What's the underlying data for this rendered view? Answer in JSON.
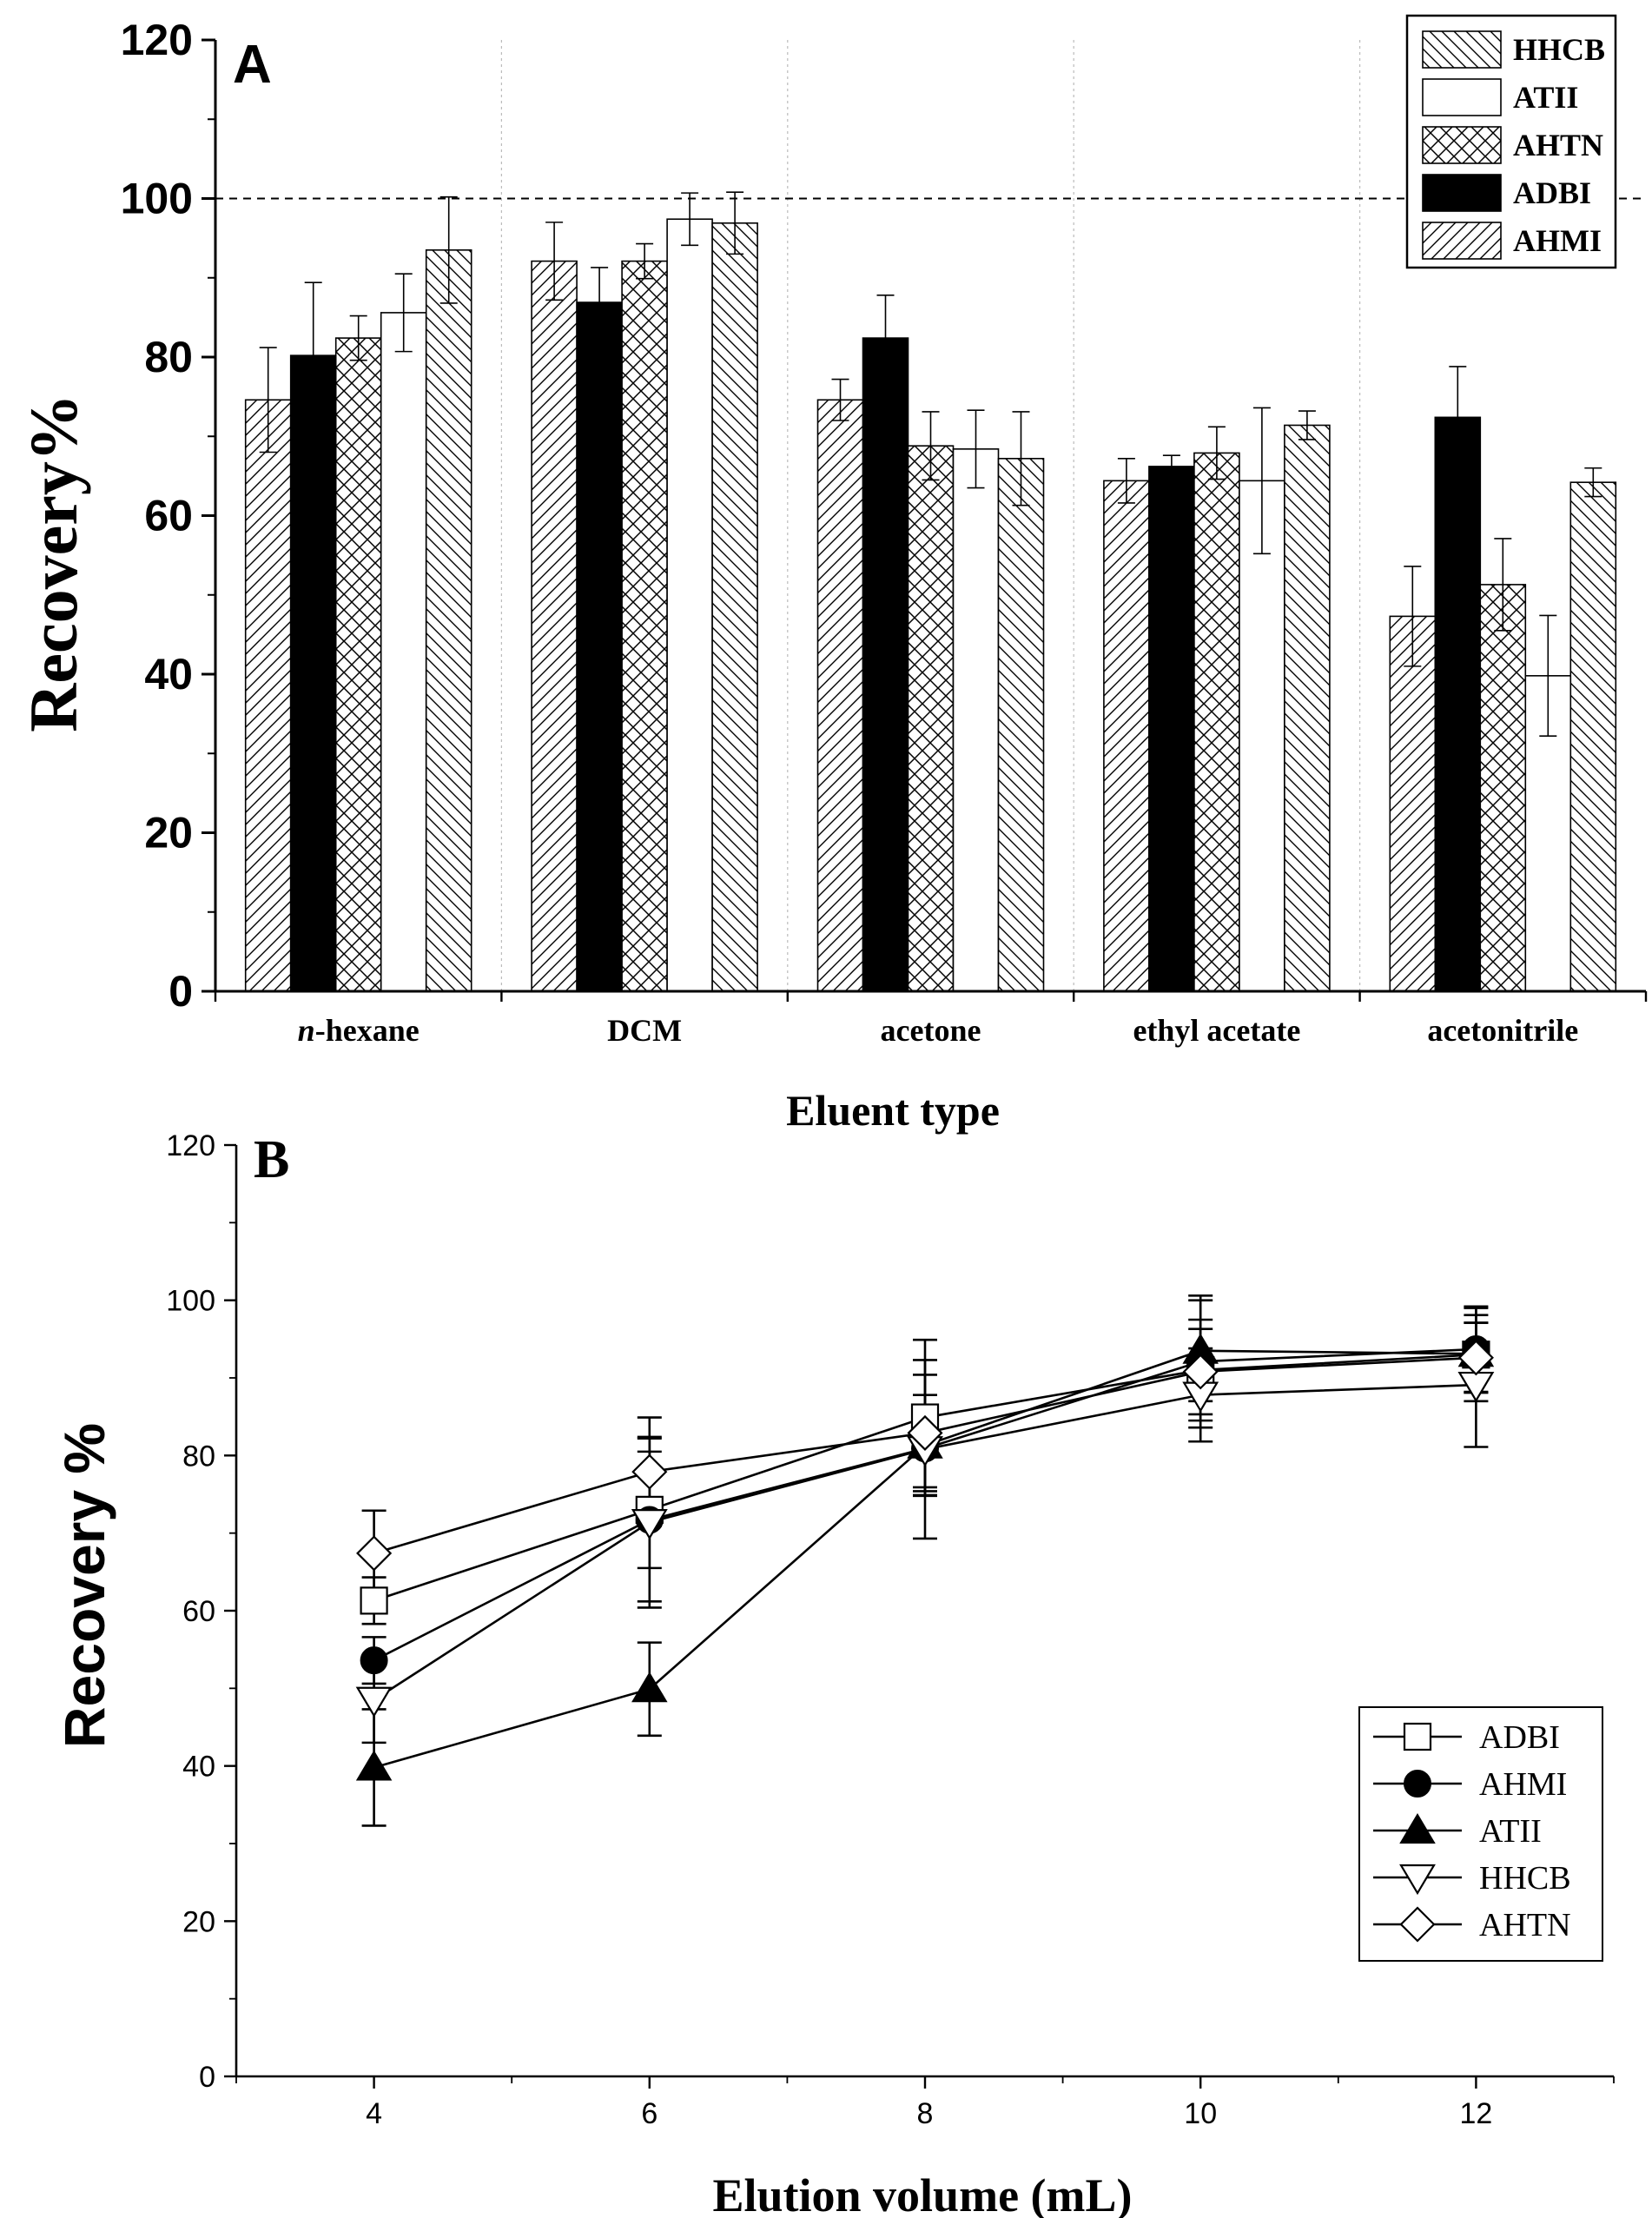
{
  "chart_data": [
    {
      "panel": "A",
      "type": "bar",
      "panel_label": "A",
      "xlabel": "Eluent type",
      "ylabel": "Recovery%",
      "ylim": [
        0,
        120
      ],
      "yticks": [
        "0",
        "20",
        "40",
        "60",
        "80",
        "100",
        "120"
      ],
      "reference_line": 100,
      "categories": [
        "n-hexane",
        "DCM",
        "acetone",
        "ethyl acetate",
        "acetonitrile"
      ],
      "category_labels": [
        {
          "prefix": "n",
          "rest": "-hexane"
        },
        {
          "prefix": "",
          "rest": "DCM"
        },
        {
          "prefix": "",
          "rest": "acetone"
        },
        {
          "prefix": "",
          "rest": "ethyl acetate"
        },
        {
          "prefix": "",
          "rest": "acetonitrile"
        }
      ],
      "legend": [
        "HHCB",
        "ATII",
        "AHTN",
        "ADBI",
        "AHMI"
      ],
      "legend_patterns": [
        "diag-down",
        "white",
        "cross",
        "black",
        "diag-up"
      ],
      "bar_order": [
        "AHMI",
        "ADBI",
        "AHTN",
        "ATII",
        "HHCB"
      ],
      "series": [
        {
          "name": "AHMI",
          "pattern": "diag-up",
          "values": [
            74.6,
            92.1,
            74.6,
            64.4,
            47.3
          ],
          "errors": [
            6.6,
            4.9,
            2.6,
            2.8,
            6.3
          ]
        },
        {
          "name": "ADBI",
          "pattern": "black",
          "values": [
            80.2,
            86.9,
            82.4,
            66.2,
            72.4
          ],
          "errors": [
            9.2,
            4.4,
            5.4,
            1.4,
            6.4
          ]
        },
        {
          "name": "AHTN",
          "pattern": "cross",
          "values": [
            82.4,
            92.1,
            68.8,
            67.9,
            51.3
          ],
          "errors": [
            2.8,
            2.2,
            4.3,
            3.3,
            5.8
          ]
        },
        {
          "name": "ATII",
          "pattern": "white",
          "values": [
            85.6,
            97.4,
            68.4,
            64.4,
            39.8
          ],
          "errors": [
            4.9,
            3.3,
            4.9,
            9.2,
            7.6
          ]
        },
        {
          "name": "HHCB",
          "pattern": "diag-down",
          "values": [
            93.5,
            96.9,
            67.2,
            71.4,
            64.2
          ],
          "errors": [
            6.7,
            3.9,
            5.9,
            1.8,
            1.8
          ]
        }
      ]
    },
    {
      "panel": "B",
      "type": "line",
      "panel_label": "B",
      "xlabel": "Elution volume (mL)",
      "ylabel": "Recovery %",
      "xlim": [
        3,
        13
      ],
      "ylim": [
        0,
        120
      ],
      "xticks": [
        "4",
        "6",
        "8",
        "10",
        "12"
      ],
      "yticks": [
        "0",
        "20",
        "40",
        "60",
        "80",
        "100",
        "120"
      ],
      "x": [
        4,
        6,
        8,
        10,
        12
      ],
      "legend": [
        "ADBI",
        "AHMI",
        "ATII",
        "HHCB",
        "AHTN"
      ],
      "series": [
        {
          "name": "ADBI",
          "marker": "square-open",
          "values": [
            61.3,
            73.0,
            84.9,
            91.0,
            93.0
          ],
          "errors": [
            3.0,
            7.5,
            10.0,
            6.5,
            6.0
          ]
        },
        {
          "name": "AHMI",
          "marker": "circle-filled",
          "values": [
            53.6,
            71.7,
            80.9,
            92.1,
            93.7
          ],
          "errors": [
            3.0,
            10.5,
            5.0,
            8.5,
            5.5
          ]
        },
        {
          "name": "ATII",
          "marker": "triangle-up-filled",
          "values": [
            39.8,
            49.9,
            81.3,
            93.5,
            93.1
          ],
          "errors": [
            7.5,
            6.0,
            6.5,
            6.5,
            5.0
          ]
        },
        {
          "name": "HHCB",
          "marker": "triangle-down-open",
          "values": [
            48.5,
            71.4,
            80.8,
            87.8,
            89.1
          ],
          "errors": [
            5.5,
            11.0,
            11.5,
            6.0,
            8.0
          ]
        },
        {
          "name": "AHTN",
          "marker": "diamond-open",
          "values": [
            67.4,
            77.9,
            82.9,
            90.8,
            92.6
          ],
          "errors": [
            5.5,
            7.0,
            7.5,
            5.5,
            4.5
          ]
        }
      ]
    }
  ]
}
